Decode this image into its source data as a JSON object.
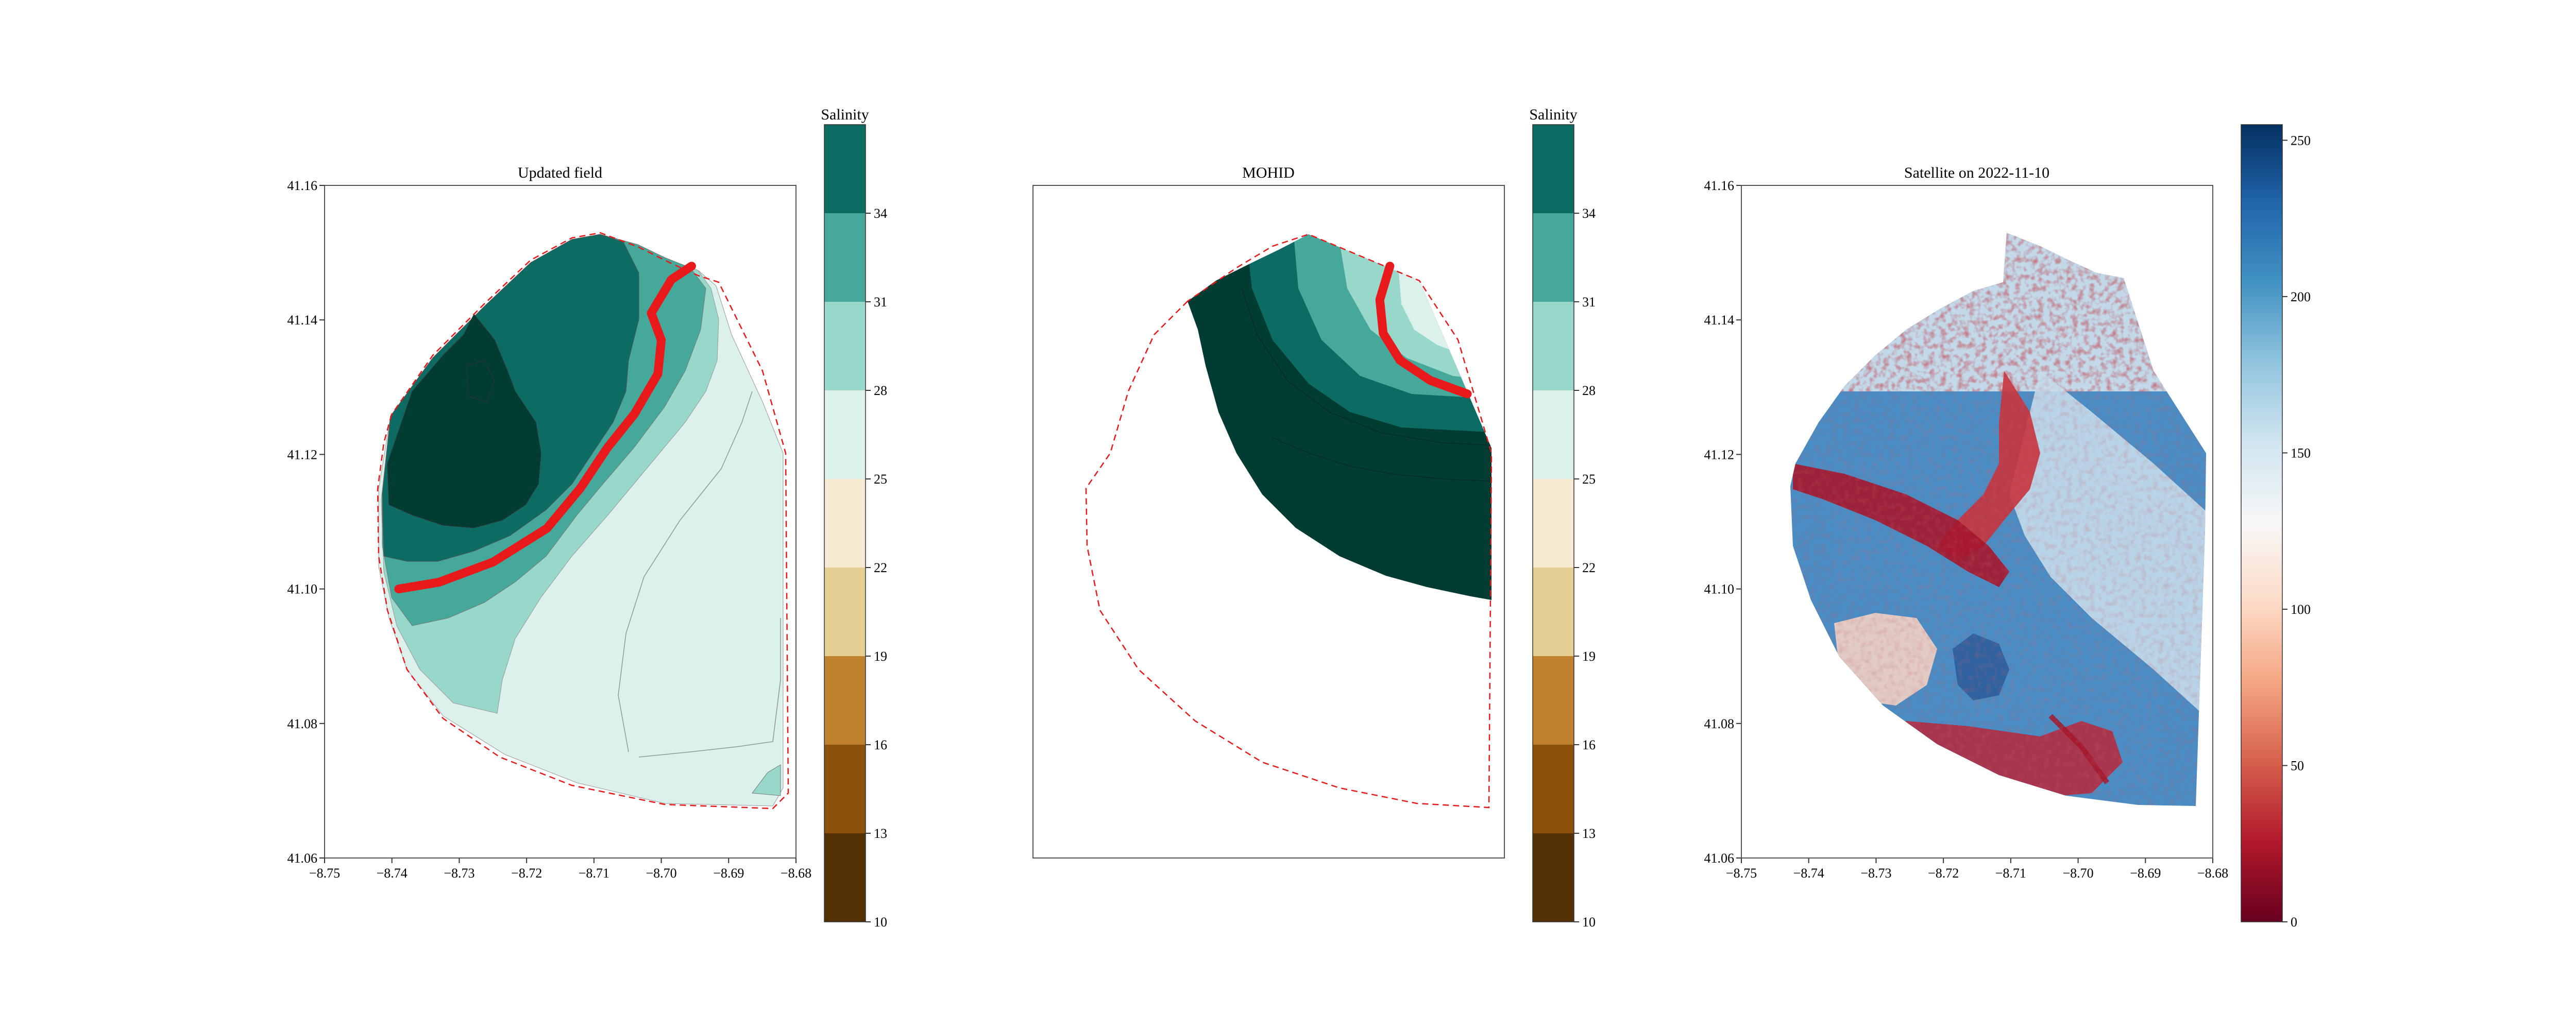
{
  "chart_data": [
    {
      "type": "contour",
      "title": "Updated field",
      "x_ticks": [
        "−8.75",
        "−8.74",
        "−8.73",
        "−8.72",
        "−8.71",
        "−8.70",
        "−8.69",
        "−8.68"
      ],
      "y_ticks": [
        "41.06",
        "41.08",
        "41.10",
        "41.12",
        "41.14",
        "41.16"
      ],
      "xlim": [
        -8.75,
        -8.68
      ],
      "ylim": [
        41.06,
        41.16
      ],
      "red_front_line": [
        [
          -8.739,
          41.1
        ],
        [
          -8.733,
          41.101
        ],
        [
          -8.725,
          41.104
        ],
        [
          -8.717,
          41.109
        ],
        [
          -8.712,
          41.115
        ],
        [
          -8.708,
          41.121
        ],
        [
          -8.704,
          41.126
        ],
        [
          -8.7005,
          41.132
        ],
        [
          -8.7,
          41.137
        ],
        [
          -8.7015,
          41.141
        ],
        [
          -8.6985,
          41.146
        ],
        [
          -8.6955,
          41.148
        ]
      ],
      "domain_boundary_style": "red dashed"
    },
    {
      "type": "contour",
      "title": "MOHID",
      "x_ticks": [
        "−8.75",
        "−8.74",
        "−8.73",
        "−8.72",
        "−8.71",
        "−8.70",
        "−8.69",
        "−8.68"
      ],
      "y_ticks": [
        "41.06",
        "41.08",
        "41.10",
        "41.12",
        "41.14",
        "41.16"
      ],
      "xlim": [
        -8.75,
        -8.68
      ],
      "ylim": [
        41.06,
        41.16
      ],
      "red_front_line": [
        [
          -8.697,
          41.148
        ],
        [
          -8.6985,
          41.143
        ],
        [
          -8.698,
          41.138
        ],
        [
          -8.6955,
          41.134
        ],
        [
          -8.691,
          41.131
        ],
        [
          -8.6855,
          41.129
        ]
      ],
      "domain_boundary_style": "red dashed"
    },
    {
      "type": "image",
      "title": "Satellite on 2022-11-10",
      "x_ticks": [
        "−8.75",
        "−8.74",
        "−8.73",
        "−8.72",
        "−8.71",
        "−8.70",
        "−8.69",
        "−8.68"
      ],
      "y_ticks": [
        "41.06",
        "41.08",
        "41.10",
        "41.12",
        "41.14",
        "41.16"
      ],
      "xlim": [
        -8.75,
        -8.68
      ],
      "ylim": [
        41.06,
        41.16
      ],
      "colormap": "RdBu"
    }
  ],
  "salinity_colorbar": {
    "label": "Salinity",
    "ticks": [
      "10",
      "13",
      "16",
      "19",
      "22",
      "25",
      "28",
      "31",
      "34"
    ],
    "levels": [
      10,
      13,
      16,
      19,
      22,
      25,
      28,
      31,
      34,
      37
    ],
    "colors": [
      "#543005",
      "#8c510a",
      "#bf812d",
      "#e6cf95",
      "#f6ead2",
      "#dcf0ec",
      "#98d8cb",
      "#46a89a",
      "#0c6b62",
      "#013c32"
    ]
  },
  "satellite_colorbar": {
    "ticks": [
      "0",
      "50",
      "100",
      "150",
      "200",
      "250"
    ],
    "range": [
      0,
      255
    ],
    "colors": [
      "#67001f",
      "#b2182b",
      "#d6604d",
      "#f4a582",
      "#fddbc7",
      "#f7f7f7",
      "#d1e5f0",
      "#92c5de",
      "#4393c3",
      "#2166ac",
      "#053061"
    ]
  },
  "colors": {
    "front_line": "#e8191b",
    "boundary": "#e8191b"
  }
}
